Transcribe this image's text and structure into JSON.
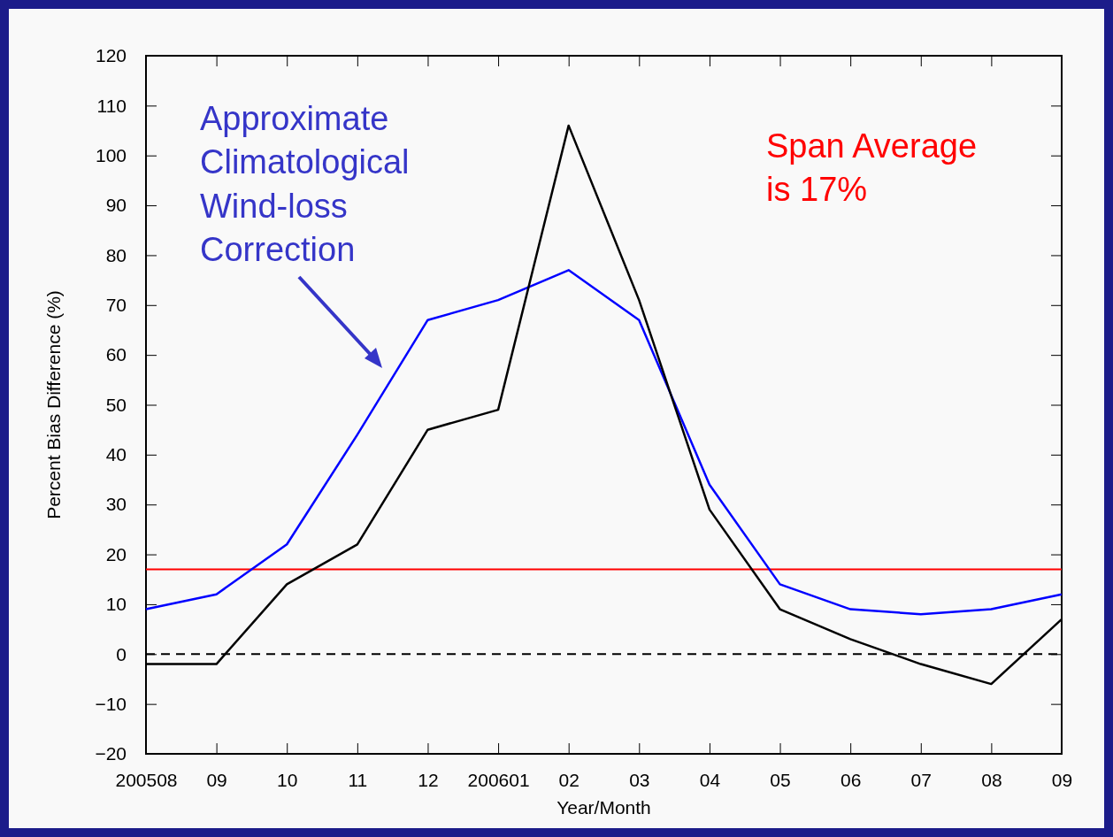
{
  "chart_data": {
    "type": "line",
    "xlabel": "Year/Month",
    "ylabel": "Percent Bias Difference (%)",
    "categories": [
      "200508",
      "09",
      "10",
      "11",
      "12",
      "200601",
      "02",
      "03",
      "04",
      "05",
      "06",
      "07",
      "08",
      "09"
    ],
    "series": [
      {
        "color": "#0000ff",
        "values": [
          9,
          12,
          22,
          44,
          67,
          71,
          77,
          67,
          34,
          14,
          9,
          8,
          9,
          12
        ]
      },
      {
        "color": "#000000",
        "values": [
          -2,
          -2,
          14,
          22,
          45,
          49,
          106,
          71,
          29,
          9,
          3,
          -2,
          -6,
          7
        ]
      }
    ],
    "ylim": [
      -20,
      120
    ],
    "yticks": [
      -20,
      -10,
      0,
      10,
      20,
      30,
      40,
      50,
      60,
      70,
      80,
      90,
      100,
      110,
      120
    ],
    "ref_lines": [
      {
        "axis": "y",
        "value": 17,
        "label": "Span Average is 17%",
        "color": "#ff0000",
        "line_style": "solid"
      },
      {
        "axis": "y",
        "value": 0,
        "color": "#000000",
        "line_style": "dashed"
      }
    ],
    "annotations": [
      "Approximate Climatological Wind-loss Correction"
    ],
    "marker": "none",
    "line_style": "solid"
  }
}
